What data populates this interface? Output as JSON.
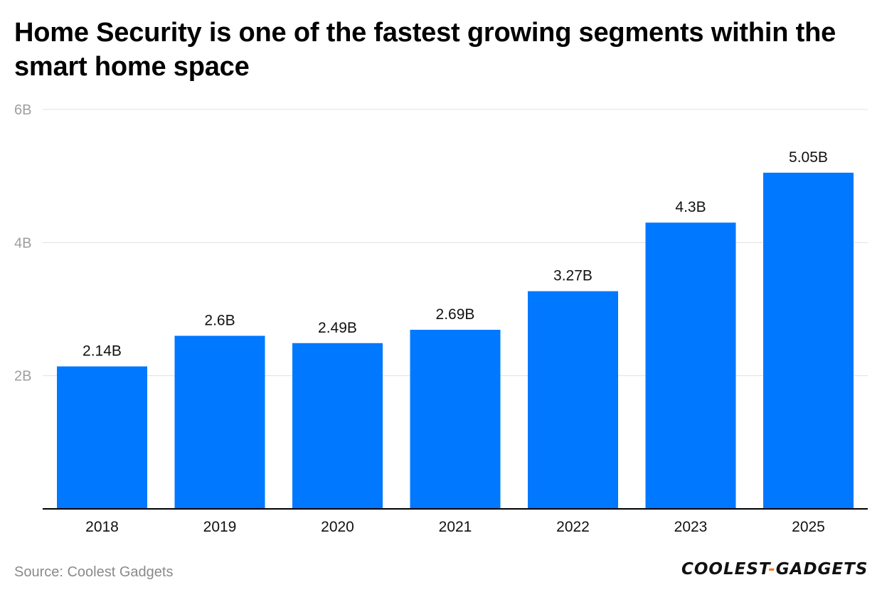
{
  "title": "Home Security is one of the fastest growing segments within the smart home space",
  "source": "Source: Coolest Gadgets",
  "logo": {
    "part1": "COOLEST",
    "dash": "-",
    "part2": "GADGETS"
  },
  "colors": {
    "bar": "#0078ff",
    "grid": "#e0e0e0",
    "axis": "#000000",
    "tick_text": "#9e9e9e"
  },
  "chart_data": {
    "type": "bar",
    "title": "Home Security is one of the fastest growing segments within the smart home space",
    "xlabel": "",
    "ylabel": "",
    "categories": [
      "2018",
      "2019",
      "2020",
      "2021",
      "2022",
      "2023",
      "2025"
    ],
    "values": [
      2.14,
      2.6,
      2.49,
      2.69,
      3.27,
      4.3,
      5.05
    ],
    "value_labels": [
      "2.14B",
      "2.6B",
      "2.49B",
      "2.69B",
      "3.27B",
      "4.3B",
      "5.05B"
    ],
    "ylim": [
      0,
      6
    ],
    "yticks": [
      2,
      4,
      6
    ],
    "ytick_labels": [
      "2B",
      "4B",
      "6B"
    ],
    "grid": true,
    "legend": "none"
  }
}
